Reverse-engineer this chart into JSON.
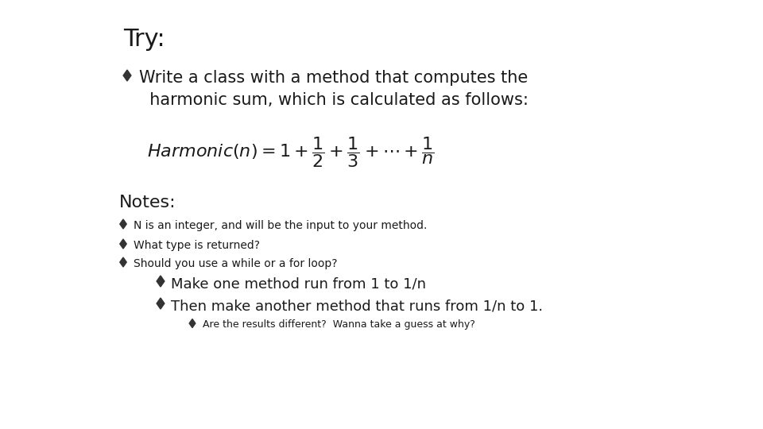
{
  "title": "Try:",
  "background_color": "#ffffff",
  "text_color": "#1a1a1a",
  "bullet_color": "#333333",
  "title_fontsize": 22,
  "title_font": "DejaVu Sans",
  "bullet1_fontsize": 15,
  "formula_fontsize": 14,
  "notes_fontsize": 16,
  "sub_bullets": [
    {
      "text": "N is an integer, and will be the input to your method.",
      "fontsize": 10,
      "indent": 0
    },
    {
      "text": "What type is returned?",
      "fontsize": 10,
      "indent": 0
    },
    {
      "text": "Should you use a while or a for loop?",
      "fontsize": 10,
      "indent": 0
    },
    {
      "text": "Make one method run from 1 to 1/n",
      "fontsize": 13,
      "indent": 1
    },
    {
      "text": "Then make another method that runs from 1/n to 1.",
      "fontsize": 13,
      "indent": 1
    },
    {
      "text": "Are the results different?  Wanna take a guess at why?",
      "fontsize": 9,
      "indent": 2
    }
  ]
}
